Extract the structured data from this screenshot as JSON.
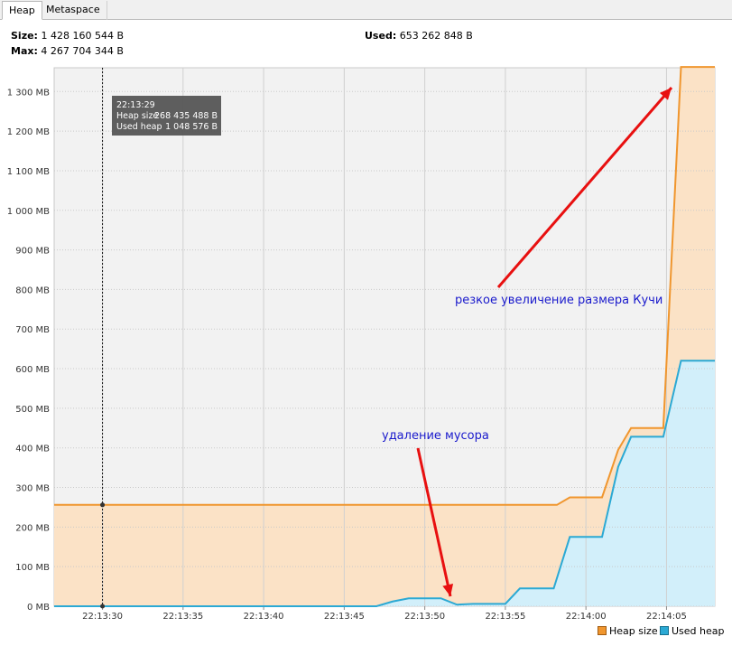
{
  "tabs": [
    {
      "label": "Heap",
      "active": true
    },
    {
      "label": "Metaspace",
      "active": false
    }
  ],
  "stats": {
    "size_label": "Size:",
    "size_value": "1 428 160 544 B",
    "max_label": "Max:",
    "max_value": "4 267 704 344 B",
    "used_label": "Used:",
    "used_value": "653 262 848 B"
  },
  "tooltip": {
    "time": "22:13:29",
    "heap_size_label": "Heap size",
    "heap_size_value": "268 435 488 B",
    "used_heap_label": "Used heap",
    "used_heap_value": "1 048 576 B"
  },
  "annotations": {
    "heap_growth": "резкое увеличение размера Кучи",
    "gc": "удаление мусора"
  },
  "colors": {
    "heap_size_line": "#f0962e",
    "heap_size_fill": "#fbe2c6",
    "used_heap_line": "#2ba9d4",
    "used_heap_fill": "#d2effa",
    "plot_background": "#f2f2f2",
    "arrow": "#e81010",
    "annotation_text": "#1a1acc"
  },
  "chart_data": {
    "type": "area",
    "y_unit": "MB",
    "ylim": [
      0,
      1360
    ],
    "y_ticks": [
      "0 MB",
      "100 MB",
      "200 MB",
      "300 MB",
      "400 MB",
      "500 MB",
      "600 MB",
      "700 MB",
      "800 MB",
      "900 MB",
      "1 000 MB",
      "1 100 MB",
      "1 200 MB",
      "1 300 MB"
    ],
    "y_tick_values": [
      0,
      100,
      200,
      300,
      400,
      500,
      600,
      700,
      800,
      900,
      1000,
      1100,
      1200,
      1300
    ],
    "x_unit": "seconds since 22:13:27",
    "xlim": [
      0,
      41
    ],
    "x_ticks": [
      "22:13:30",
      "22:13:35",
      "22:13:40",
      "22:13:45",
      "22:13:50",
      "22:13:55",
      "22:14:00",
      "22:14:05"
    ],
    "x_tick_values": [
      3,
      8,
      13,
      18,
      23,
      28,
      33,
      38
    ],
    "grid": true,
    "legend": "bottom-right",
    "series": [
      {
        "name": "Heap size",
        "points": [
          [
            0,
            256
          ],
          [
            31.2,
            256
          ],
          [
            32,
            275
          ],
          [
            34,
            275
          ],
          [
            35,
            395
          ],
          [
            35.8,
            450
          ],
          [
            37.8,
            450
          ],
          [
            38.9,
            1362
          ],
          [
            41,
            1362
          ]
        ]
      },
      {
        "name": "Used heap",
        "points": [
          [
            0,
            0
          ],
          [
            20,
            0
          ],
          [
            21,
            12
          ],
          [
            22,
            20
          ],
          [
            24,
            20
          ],
          [
            25,
            4
          ],
          [
            26,
            6
          ],
          [
            28,
            6
          ],
          [
            28.9,
            45
          ],
          [
            31,
            45
          ],
          [
            32,
            175
          ],
          [
            34,
            175
          ],
          [
            35,
            352
          ],
          [
            35.8,
            428
          ],
          [
            37.8,
            428
          ],
          [
            38.9,
            620
          ],
          [
            41,
            620
          ]
        ]
      }
    ]
  }
}
